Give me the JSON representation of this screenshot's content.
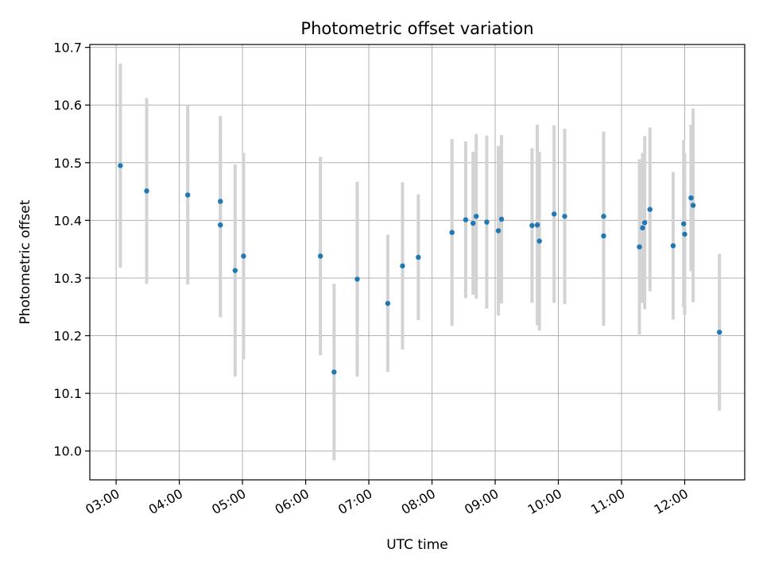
{
  "chart_data": {
    "type": "scatter",
    "title": "Photometric offset variation",
    "xlabel": "UTC time",
    "ylabel": "Photometric offset",
    "xlim": [
      "02:35",
      "12:57"
    ],
    "ylim": [
      9.95,
      10.705
    ],
    "grid": true,
    "x_ticks": [
      "03:00",
      "04:00",
      "05:00",
      "06:00",
      "07:00",
      "08:00",
      "09:00",
      "10:00",
      "11:00",
      "12:00"
    ],
    "y_ticks": [
      10.0,
      10.1,
      10.2,
      10.3,
      10.4,
      10.5,
      10.6,
      10.7
    ],
    "y_tick_labels": [
      "10.0",
      "10.1",
      "10.2",
      "10.3",
      "10.4",
      "10.5",
      "10.6",
      "10.7"
    ],
    "colors": {
      "points": "#1f77b4",
      "errorbars": "#d3d3d3",
      "grid": "#b0b0b0"
    },
    "points": [
      {
        "x": "03:04",
        "y": 10.495,
        "yerr": 0.177
      },
      {
        "x": "03:29",
        "y": 10.451,
        "yerr": 0.161
      },
      {
        "x": "04:08",
        "y": 10.444,
        "yerr": 0.155
      },
      {
        "x": "04:39",
        "y": 10.433,
        "yerr": 0.148
      },
      {
        "x": "04:39",
        "y": 10.392,
        "yerr": 0.16
      },
      {
        "x": "04:53",
        "y": 10.313,
        "yerr": 0.184
      },
      {
        "x": "05:01",
        "y": 10.338,
        "yerr": 0.179
      },
      {
        "x": "06:14",
        "y": 10.338,
        "yerr": 0.172
      },
      {
        "x": "06:27",
        "y": 10.137,
        "yerr": 0.153
      },
      {
        "x": "06:49",
        "y": 10.298,
        "yerr": 0.169
      },
      {
        "x": "07:18",
        "y": 10.256,
        "yerr": 0.119
      },
      {
        "x": "07:32",
        "y": 10.321,
        "yerr": 0.145
      },
      {
        "x": "07:47",
        "y": 10.336,
        "yerr": 0.109
      },
      {
        "x": "08:19",
        "y": 10.379,
        "yerr": 0.162
      },
      {
        "x": "08:32",
        "y": 10.401,
        "yerr": 0.136
      },
      {
        "x": "08:39",
        "y": 10.395,
        "yerr": 0.124
      },
      {
        "x": "08:42",
        "y": 10.407,
        "yerr": 0.143
      },
      {
        "x": "08:52",
        "y": 10.397,
        "yerr": 0.15
      },
      {
        "x": "09:03",
        "y": 10.382,
        "yerr": 0.147
      },
      {
        "x": "09:06",
        "y": 10.402,
        "yerr": 0.146
      },
      {
        "x": "09:35",
        "y": 10.391,
        "yerr": 0.134
      },
      {
        "x": "09:40",
        "y": 10.392,
        "yerr": 0.174
      },
      {
        "x": "09:42",
        "y": 10.364,
        "yerr": 0.155
      },
      {
        "x": "09:56",
        "y": 10.411,
        "yerr": 0.154
      },
      {
        "x": "10:06",
        "y": 10.407,
        "yerr": 0.152
      },
      {
        "x": "10:43",
        "y": 10.407,
        "yerr": 0.147
      },
      {
        "x": "10:43",
        "y": 10.373,
        "yerr": 0.156
      },
      {
        "x": "11:17",
        "y": 10.354,
        "yerr": 0.152
      },
      {
        "x": "11:20",
        "y": 10.387,
        "yerr": 0.13
      },
      {
        "x": "11:22",
        "y": 10.396,
        "yerr": 0.15
      },
      {
        "x": "11:27",
        "y": 10.419,
        "yerr": 0.142
      },
      {
        "x": "11:49",
        "y": 10.356,
        "yerr": 0.128
      },
      {
        "x": "11:59",
        "y": 10.394,
        "yerr": 0.145
      },
      {
        "x": "12:00",
        "y": 10.376,
        "yerr": 0.14
      },
      {
        "x": "12:06",
        "y": 10.439,
        "yerr": 0.127
      },
      {
        "x": "12:08",
        "y": 10.426,
        "yerr": 0.168
      },
      {
        "x": "12:33",
        "y": 10.206,
        "yerr": 0.136
      }
    ]
  }
}
